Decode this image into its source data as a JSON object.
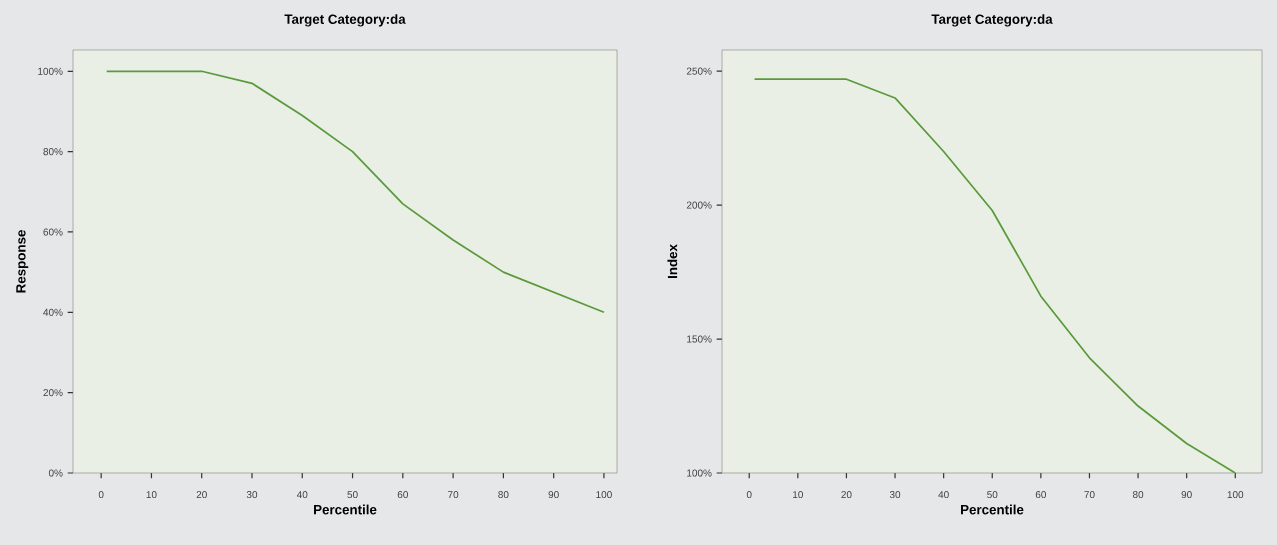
{
  "chart_data": [
    {
      "type": "line",
      "title": "Target Category:da",
      "xlabel": "Percentile",
      "ylabel": "Response",
      "x": [
        1.1,
        20,
        30,
        40,
        50,
        60,
        70,
        80,
        90,
        100
      ],
      "series": [
        {
          "color": "#5a9a3c",
          "values": [
            100,
            100,
            97,
            89,
            80,
            67,
            58,
            50,
            45,
            40
          ]
        }
      ],
      "xlim": [
        -5.6,
        102.6
      ],
      "ylim": [
        0,
        105.3
      ],
      "xticks": [
        0,
        10,
        20,
        30,
        40,
        50,
        60,
        70,
        80,
        90,
        100
      ],
      "yticks": [
        {
          "value": 0,
          "label": "0%"
        },
        {
          "value": 20,
          "label": "20%"
        },
        {
          "value": 40,
          "label": "40%"
        },
        {
          "value": 60,
          "label": "60%"
        },
        {
          "value": 80,
          "label": "80%"
        },
        {
          "value": 100,
          "label": "100%"
        }
      ],
      "grid": false,
      "marker": "none",
      "line_style": "solid"
    },
    {
      "type": "line",
      "title": "Target Category:da",
      "xlabel": "Percentile",
      "ylabel": "Index",
      "x": [
        1.1,
        20,
        30,
        40,
        50,
        60,
        70,
        80,
        90,
        100
      ],
      "series": [
        {
          "color": "#5a9a3c",
          "values": [
            247,
            247,
            240,
            220,
            198,
            166,
            143,
            125,
            111,
            100
          ]
        }
      ],
      "xlim": [
        -5.6,
        105.5
      ],
      "ylim": [
        100,
        257.9
      ],
      "xticks": [
        0,
        10,
        20,
        30,
        40,
        50,
        60,
        70,
        80,
        90,
        100
      ],
      "yticks": [
        {
          "value": 100,
          "label": "100%"
        },
        {
          "value": 150,
          "label": "150%"
        },
        {
          "value": 200,
          "label": "200%"
        },
        {
          "value": 250,
          "label": "250%"
        }
      ],
      "grid": false,
      "marker": "none",
      "line_style": "solid"
    }
  ]
}
